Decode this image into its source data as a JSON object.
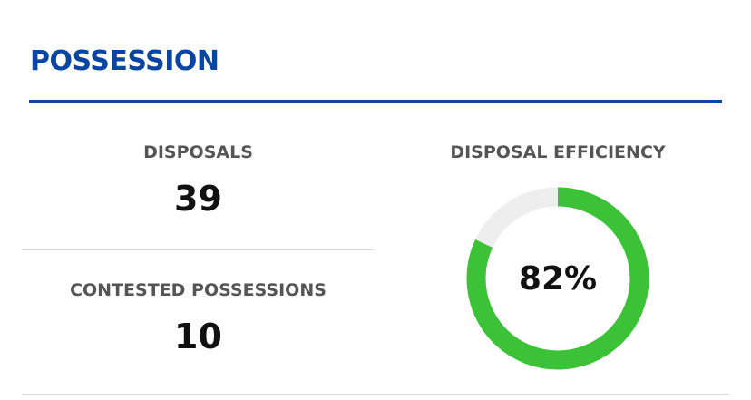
{
  "section": {
    "title": "POSSESSION"
  },
  "stats": [
    {
      "label": "DISPOSALS",
      "value": "39"
    },
    {
      "label": "CONTESTED POSSESSIONS",
      "value": "10"
    }
  ],
  "efficiency": {
    "label": "DISPOSAL EFFICIENCY",
    "value_text": "82%",
    "percent": 82
  },
  "colors": {
    "title": "#0b45a2",
    "gauge_fill": "#3bc236",
    "gauge_track": "#eeeeee"
  }
}
